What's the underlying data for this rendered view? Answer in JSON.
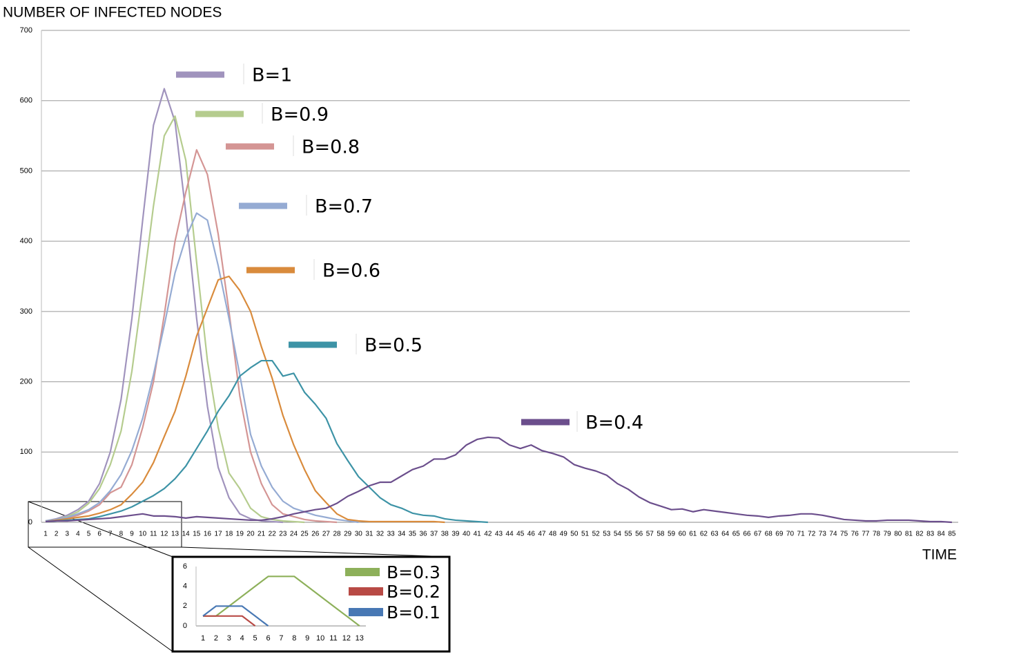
{
  "chart_data": [
    {
      "type": "line",
      "y_label": "NUMBER OF INFECTED NODES",
      "x_label": "TIME",
      "x": [
        1,
        2,
        3,
        4,
        5,
        6,
        7,
        8,
        9,
        10,
        11,
        12,
        13,
        14,
        15,
        16,
        17,
        18,
        19,
        20,
        21,
        22,
        23,
        24,
        25,
        26,
        27,
        28,
        29,
        30,
        31,
        32,
        33,
        34,
        35,
        36,
        37,
        38,
        39,
        40,
        41,
        42,
        43,
        44,
        45,
        46,
        47,
        48,
        49,
        50,
        51,
        52,
        53,
        54,
        55,
        56,
        57,
        58,
        59,
        60,
        61,
        62,
        63,
        64,
        65,
        66,
        67,
        68,
        69,
        70,
        71,
        72,
        73,
        74,
        75,
        76,
        77,
        78,
        79,
        80,
        81,
        82,
        83,
        84,
        85
      ],
      "ylim": [
        0,
        700
      ],
      "yticks": [
        0,
        100,
        200,
        300,
        400,
        500,
        600,
        700
      ],
      "grid": true,
      "series": [
        {
          "name": "B=1",
          "color": "#a093bd",
          "values": [
            2,
            5,
            10,
            18,
            30,
            55,
            100,
            175,
            290,
            430,
            565,
            617,
            570,
            440,
            290,
            165,
            78,
            35,
            12,
            5,
            2,
            1,
            0,
            null,
            null,
            null,
            null,
            null,
            null,
            null,
            null,
            null,
            null,
            null,
            null,
            null,
            null,
            null,
            null,
            null,
            null,
            null,
            null,
            null,
            null,
            null,
            null,
            null,
            null,
            null,
            null,
            null,
            null,
            null,
            null,
            null,
            null,
            null,
            null,
            null,
            null,
            null,
            null,
            null,
            null,
            null,
            null,
            null,
            null,
            null,
            null,
            null,
            null,
            null,
            null,
            null,
            null,
            null,
            null,
            null,
            null,
            null,
            null,
            null,
            null
          ]
        },
        {
          "name": "B=0.9",
          "color": "#b5cc8e",
          "values": [
            2,
            4,
            8,
            15,
            27,
            48,
            82,
            130,
            215,
            330,
            450,
            550,
            578,
            515,
            370,
            230,
            135,
            70,
            48,
            20,
            8,
            4,
            2,
            1,
            0,
            null,
            null,
            null,
            null,
            null,
            null,
            null,
            null,
            null,
            null,
            null,
            null,
            null,
            null,
            null,
            null,
            null,
            null,
            null,
            null,
            null,
            null,
            null,
            null,
            null,
            null,
            null,
            null,
            null,
            null,
            null,
            null,
            null,
            null,
            null,
            null,
            null,
            null,
            null,
            null,
            null,
            null,
            null,
            null,
            null,
            null,
            null,
            null,
            null,
            null,
            null,
            null,
            null,
            null,
            null,
            null,
            null,
            null,
            null,
            null
          ]
        },
        {
          "name": "B=0.8",
          "color": "#d49594",
          "values": [
            1,
            3,
            6,
            10,
            16,
            25,
            42,
            50,
            82,
            135,
            200,
            295,
            400,
            470,
            530,
            495,
            410,
            300,
            180,
            100,
            55,
            25,
            12,
            8,
            4,
            2,
            1,
            0,
            null,
            null,
            null,
            null,
            null,
            null,
            null,
            null,
            null,
            null,
            null,
            null,
            null,
            null,
            null,
            null,
            null,
            null,
            null,
            null,
            null,
            null,
            null,
            null,
            null,
            null,
            null,
            null,
            null,
            null,
            null,
            null,
            null,
            null,
            null,
            null,
            null,
            null,
            null,
            null,
            null,
            null,
            null,
            null,
            null,
            null,
            null,
            null,
            null,
            null,
            null,
            null,
            null,
            null,
            null,
            null,
            null
          ]
        },
        {
          "name": "B=0.7",
          "color": "#95abd3",
          "values": [
            2,
            4,
            7,
            12,
            18,
            28,
            45,
            68,
            102,
            148,
            210,
            280,
            355,
            405,
            440,
            430,
            365,
            290,
            210,
            125,
            80,
            50,
            30,
            20,
            15,
            10,
            7,
            4,
            2,
            0,
            null,
            null,
            null,
            null,
            null,
            null,
            null,
            null,
            null,
            null,
            null,
            null,
            null,
            null,
            null,
            null,
            null,
            null,
            null,
            null,
            null,
            null,
            null,
            null,
            null,
            null,
            null,
            null,
            null,
            null,
            null,
            null,
            null,
            null,
            null,
            null,
            null,
            null,
            null,
            null,
            null,
            null,
            null,
            null,
            null,
            null,
            null,
            null,
            null,
            null,
            null,
            null,
            null,
            null,
            null
          ]
        },
        {
          "name": "B=0.6",
          "color": "#d98b3c",
          "values": [
            1,
            3,
            5,
            7,
            9,
            13,
            18,
            25,
            40,
            57,
            85,
            122,
            158,
            208,
            265,
            305,
            345,
            350,
            330,
            300,
            250,
            205,
            152,
            110,
            75,
            45,
            28,
            12,
            4,
            2,
            1,
            1,
            1,
            1,
            1,
            1,
            1,
            0,
            null,
            null,
            null,
            null,
            null,
            null,
            null,
            null,
            null,
            null,
            null,
            null,
            null,
            null,
            null,
            null,
            null,
            null,
            null,
            null,
            null,
            null,
            null,
            null,
            null,
            null,
            null,
            null,
            null,
            null,
            null,
            null,
            null,
            null,
            null,
            null,
            null,
            null,
            null,
            null,
            null,
            null,
            null,
            null,
            null,
            null,
            null
          ]
        },
        {
          "name": "B=0.5",
          "color": "#3d93a6",
          "values": [
            1,
            2,
            3,
            4,
            5,
            8,
            12,
            16,
            22,
            30,
            38,
            48,
            62,
            80,
            105,
            130,
            158,
            180,
            208,
            220,
            230,
            230,
            208,
            212,
            185,
            168,
            148,
            112,
            88,
            65,
            50,
            35,
            25,
            20,
            13,
            10,
            9,
            5,
            3,
            2,
            1,
            0,
            null,
            null,
            null,
            null,
            null,
            null,
            null,
            null,
            null,
            null,
            null,
            null,
            null,
            null,
            null,
            null,
            null,
            null,
            null,
            null,
            null,
            null,
            null,
            null,
            null,
            null,
            null,
            null,
            null,
            null,
            null,
            null,
            null,
            null,
            null,
            null,
            null,
            null,
            null,
            null,
            null,
            null,
            null
          ]
        },
        {
          "name": "B=0.4",
          "color": "#6b4e8c",
          "values": [
            1,
            2,
            2,
            3,
            4,
            5,
            6,
            8,
            10,
            12,
            9,
            9,
            8,
            6,
            8,
            7,
            6,
            5,
            4,
            3,
            3,
            5,
            8,
            12,
            15,
            18,
            20,
            27,
            37,
            44,
            52,
            57,
            57,
            66,
            75,
            80,
            90,
            90,
            96,
            110,
            118,
            121,
            120,
            110,
            105,
            110,
            102,
            98,
            93,
            82,
            77,
            73,
            67,
            55,
            47,
            36,
            28,
            23,
            18,
            19,
            15,
            18,
            16,
            14,
            12,
            10,
            9,
            7,
            9,
            10,
            12,
            12,
            10,
            7,
            4,
            3,
            2,
            2,
            3,
            3,
            3,
            2,
            1,
            1,
            0
          ]
        }
      ]
    },
    {
      "type": "line",
      "x": [
        1,
        2,
        3,
        4,
        5,
        6,
        7,
        8,
        9,
        10,
        11,
        12,
        13
      ],
      "ylim": [
        0,
        6
      ],
      "yticks": [
        0,
        2,
        4,
        6
      ],
      "series": [
        {
          "name": "B=0.3",
          "color": "#8db05a",
          "values": [
            1,
            1,
            2,
            3,
            4,
            5,
            5,
            5,
            4,
            3,
            2,
            1,
            0
          ]
        },
        {
          "name": "B=0.2",
          "color": "#b84a45",
          "values": [
            1,
            1,
            1,
            1,
            0,
            null,
            null,
            null,
            null,
            null,
            null,
            null,
            null
          ]
        },
        {
          "name": "B=0.1",
          "color": "#4878b4",
          "values": [
            1,
            2,
            2,
            2,
            1,
            0,
            null,
            null,
            null,
            null,
            null,
            null,
            null
          ]
        }
      ]
    }
  ]
}
